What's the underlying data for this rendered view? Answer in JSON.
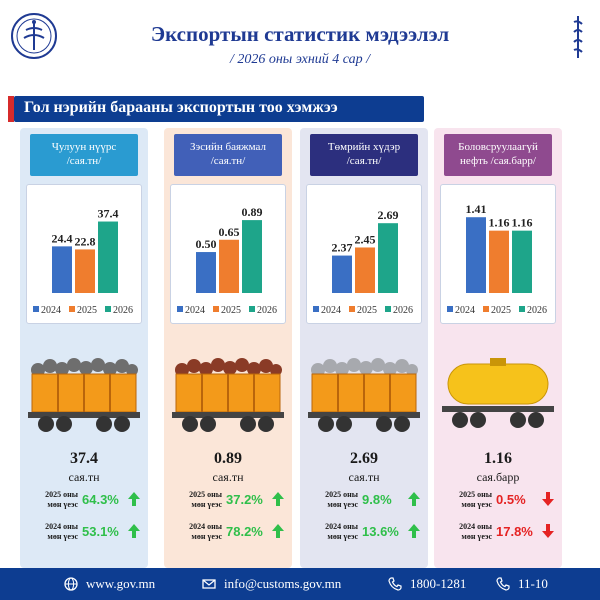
{
  "header": {
    "title": "Экспортын статистик мэдээлэл",
    "subtitle": "/ 2026 оны эхний 4 сар /"
  },
  "section_title": "Гол нэрийн барааны экспортын тоо хэмжээ",
  "colors": {
    "s2024": "#3a6fc4",
    "s2025": "#ef7d2e",
    "s2026": "#1ea58a",
    "up": "#2fbf4a",
    "down": "#e52323"
  },
  "legend": [
    "2024",
    "2025",
    "2026"
  ],
  "products": [
    {
      "header": [
        "Чулуун нүүрс",
        "/сая.тн/"
      ],
      "value": "37.4",
      "unit": "сая.тн",
      "comparisons": [
        {
          "label": [
            "2025 оны",
            "мөн үеэс"
          ],
          "pct": "64.3%",
          "dir": "up"
        },
        {
          "label": [
            "2024 оны",
            "мөн үеэс"
          ],
          "pct": "53.1%",
          "dir": "up"
        }
      ]
    },
    {
      "header": [
        "Зэсийн баяжмал",
        "/сая.тн/"
      ],
      "value": "0.89",
      "unit": "сая.тн",
      "comparisons": [
        {
          "label": [
            "2025 оны",
            "мөн үеэс"
          ],
          "pct": "37.2%",
          "dir": "up"
        },
        {
          "label": [
            "2024 оны",
            "мөн үеэс"
          ],
          "pct": "78.2%",
          "dir": "up"
        }
      ]
    },
    {
      "header": [
        "Төмрийн хүдэр",
        "/сая.тн/"
      ],
      "value": "2.69",
      "unit": "сая.тн",
      "comparisons": [
        {
          "label": [
            "2025 оны",
            "мөн үеэс"
          ],
          "pct": "9.8%",
          "dir": "up"
        },
        {
          "label": [
            "2024 оны",
            "мөн үеэс"
          ],
          "pct": "13.6%",
          "dir": "up"
        }
      ]
    },
    {
      "header": [
        "Боловсруулаагүй",
        "нефть /сая.барр/"
      ],
      "value": "1.16",
      "unit": "сая.барр",
      "comparisons": [
        {
          "label": [
            "2025 оны",
            "мөн үеэс"
          ],
          "pct": "0.5%",
          "dir": "down"
        },
        {
          "label": [
            "2024 оны",
            "мөн үеэс"
          ],
          "pct": "17.8%",
          "dir": "down"
        }
      ]
    }
  ],
  "chart_data": [
    {
      "type": "bar",
      "categories": [
        "2024",
        "2025",
        "2026"
      ],
      "values": [
        24.4,
        22.8,
        37.4
      ],
      "labels": [
        "24.4",
        "22.8",
        "37.4"
      ],
      "ylim": [
        0,
        45
      ]
    },
    {
      "type": "bar",
      "categories": [
        "2024",
        "2025",
        "2026"
      ],
      "values": [
        0.5,
        0.65,
        0.89
      ],
      "labels": [
        "0.50",
        "0.65",
        "0.89"
      ],
      "ylim": [
        0,
        1.05
      ]
    },
    {
      "type": "bar",
      "categories": [
        "2024",
        "2025",
        "2026"
      ],
      "values": [
        2.37,
        2.45,
        2.69
      ],
      "labels": [
        "2.37",
        "2.45",
        "2.69"
      ],
      "ylim": [
        2.0,
        2.85
      ]
    },
    {
      "type": "bar",
      "categories": [
        "2024",
        "2025",
        "2026"
      ],
      "values": [
        1.41,
        1.16,
        1.16
      ],
      "labels": [
        "1.41",
        "1.16",
        "1.16"
      ],
      "ylim": [
        0,
        1.6
      ]
    }
  ],
  "footer": {
    "web": "www.gov.mn",
    "email": "info@customs.gov.mn",
    "phone": "1800-1281",
    "code": "11-10"
  }
}
